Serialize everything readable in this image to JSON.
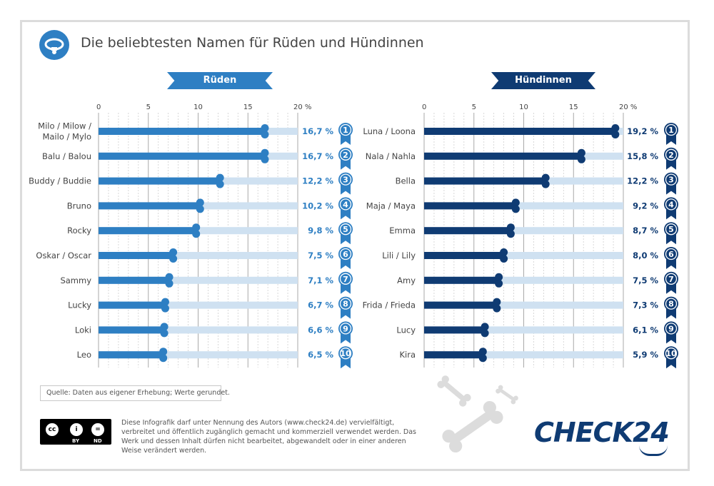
{
  "title": "Die beliebtesten Namen für Rüden und Hündinnen",
  "icons": {
    "header": "dog-collar-icon",
    "rank": "ribbon-badge-icon",
    "decoration": "dog-bone-icon"
  },
  "colors": {
    "male": "#2e7fc3",
    "female": "#0f3b73",
    "track": "#cfe1f1",
    "grid": "#bdbdbd"
  },
  "chart_data": [
    {
      "type": "bar",
      "title": "Rüden",
      "xlim": [
        0,
        20
      ],
      "ticks": [
        "0",
        "5",
        "10",
        "15",
        "20 %"
      ],
      "categories": [
        "Milo / Milow / Mailo / Mylo",
        "Balu / Balou",
        "Buddy / Buddie",
        "Bruno",
        "Rocky",
        "Oskar / Oscar",
        "Sammy",
        "Lucky",
        "Loki",
        "Leo"
      ],
      "values": [
        16.7,
        16.7,
        12.2,
        10.2,
        9.8,
        7.5,
        7.1,
        6.7,
        6.6,
        6.5
      ],
      "labels": [
        "16,7 %",
        "16,7 %",
        "12,2 %",
        "10,2 %",
        "9,8 %",
        "7,5 %",
        "7,1 %",
        "6,7 %",
        "6,6 %",
        "6,5 %"
      ],
      "ranks": [
        "1",
        "2",
        "3",
        "4",
        "5",
        "6",
        "7",
        "8",
        "9",
        "10"
      ],
      "grid": true
    },
    {
      "type": "bar",
      "title": "Hündinnen",
      "xlim": [
        0,
        20
      ],
      "ticks": [
        "0",
        "5",
        "10",
        "15",
        "20 %"
      ],
      "categories": [
        "Luna / Loona",
        "Nala / Nahla",
        "Bella",
        "Maja / Maya",
        "Emma",
        "Lili / Lily",
        "Amy",
        "Frida / Frieda",
        "Lucy",
        "Kira"
      ],
      "values": [
        19.2,
        15.8,
        12.2,
        9.2,
        8.7,
        8.0,
        7.5,
        7.3,
        6.1,
        5.9
      ],
      "labels": [
        "19,2 %",
        "15,8 %",
        "12,2 %",
        "9,2 %",
        "8,7 %",
        "8,0 %",
        "7,5 %",
        "7,3 %",
        "6,1 %",
        "5,9 %"
      ],
      "ranks": [
        "1",
        "2",
        "3",
        "4",
        "5",
        "6",
        "7",
        "8",
        "9",
        "10"
      ],
      "grid": true
    }
  ],
  "source": "Quelle: Daten aus eigener Erhebung; Werte gerundet.",
  "license": {
    "badge": {
      "cc": "cc",
      "by": "BY",
      "nd": "ND"
    },
    "text": "Diese Infografik darf unter Nennung des Autors (www.check24.de) vervielfältigt, verbreitet und öffentlich zugänglich gemacht und kommerziell verwendet werden. Das Werk und dessen Inhalt dürfen nicht bearbeitet, abgewandelt oder in einer anderen Weise verändert werden."
  },
  "logo": "CHECK24"
}
